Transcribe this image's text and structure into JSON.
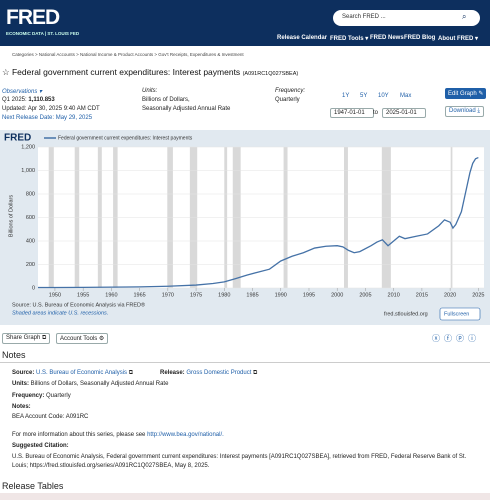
{
  "header": {
    "logo": "FRED",
    "tagline": "ECONOMIC DATA | ST. LOUIS FED",
    "search": "Search FRED ...",
    "nav": [
      "Release Calendar",
      "FRED Tools ▾",
      "FRED News",
      "FRED Blog",
      "About FRED ▾"
    ]
  },
  "breadcrumb": "Categories > National Accounts > National Income & Product Accounts > Gov't Receipts, Expenditures & Investment",
  "title": "Federal government current expenditures: Interest payments",
  "series_id": "(A091RC1Q027SBEA)",
  "info": {
    "observations": "Observations ▾",
    "latest_label": "Q1 2025:",
    "latest_value": "1,110.853",
    "updated": "Updated: Apr 30, 2025 9:40 AM CDT",
    "next_release": "Next Release Date: May 29, 2025",
    "units_label": "Units:",
    "units": "Billions of Dollars,",
    "units2": "Seasonally Adjusted Annual Rate",
    "frequency_label": "Frequency:",
    "frequency": "Quarterly"
  },
  "controls": {
    "ranges": [
      "1Y",
      "5Y",
      "10Y",
      "Max"
    ],
    "start": "1947-01-01",
    "to": "to",
    "end": "2025-01-01",
    "edit": "Edit Graph",
    "download": "Download"
  },
  "chart": {
    "type": "line",
    "logo": "FRED",
    "legend": "Federal government current expenditures: Interest payments",
    "ylabel": "Billions of Dollars",
    "color": "#4572a7",
    "x": [
      1947,
      1950,
      1955,
      1960,
      1965,
      1970,
      1975,
      1978,
      1980,
      1982,
      1984,
      1986,
      1988,
      1990,
      1992,
      1994,
      1996,
      1998,
      2000,
      2001,
      2002,
      2003,
      2004,
      2006,
      2007,
      2008,
      2009,
      2010,
      2011,
      2012,
      2014,
      2016,
      2018,
      2019,
      2020,
      2020.5,
      2021,
      2022,
      2023,
      2023.5,
      2024,
      2024.5,
      2025
    ],
    "values": [
      4,
      4.5,
      5.5,
      7.5,
      9.5,
      15,
      25,
      38,
      52,
      80,
      110,
      135,
      160,
      230,
      270,
      300,
      340,
      355,
      360,
      350,
      320,
      300,
      310,
      360,
      390,
      410,
      360,
      400,
      440,
      420,
      440,
      460,
      530,
      580,
      560,
      510,
      540,
      650,
      870,
      980,
      1060,
      1100,
      1110
    ],
    "xlim": [
      1947,
      2026
    ],
    "xticks": [
      1950,
      1955,
      1960,
      1965,
      1970,
      1975,
      1980,
      1985,
      1990,
      1995,
      2000,
      2005,
      2010,
      2015,
      2020,
      2025
    ],
    "ylim": [
      0,
      1200
    ],
    "yticks": [
      0,
      200,
      400,
      600,
      {
        "value": 800,
        "label": "800"
      },
      {
        "value": 1000,
        "label": "1,000"
      },
      {
        "value": 1200,
        "label": "1,200"
      }
    ],
    "recessions": [
      [
        1948.9,
        1949.8
      ],
      [
        1953.5,
        1954.3
      ],
      [
        1957.6,
        1958.3
      ],
      [
        1960.3,
        1961.1
      ],
      [
        1969.9,
        1970.9
      ],
      [
        1973.9,
        1975.2
      ],
      [
        1980.0,
        1980.5
      ],
      [
        1981.5,
        1982.9
      ],
      [
        1990.5,
        1991.2
      ],
      [
        2001.2,
        2001.9
      ],
      [
        2007.9,
        2009.5
      ],
      [
        2020.1,
        2020.4
      ]
    ],
    "recession_color": "#d9d9d9",
    "grid": true,
    "source": "Source: U.S. Bureau of Economic Analysis via FRED®",
    "shaded": "Shaded areas indicate U.S. recessions.",
    "site": "fred.stlouisfed.org",
    "fullscreen": "Fullscreen"
  },
  "share": {
    "share": "Share Graph",
    "account": "Account Tools"
  },
  "notes": {
    "heading": "Notes",
    "source_label": "Source:",
    "source": "U.S. Bureau of Economic Analysis",
    "release_label": "Release:",
    "release": "Gross Domestic Product",
    "units_label": "Units:",
    "units": "Billions of Dollars, Seasonally Adjusted Annual Rate",
    "frequency_label": "Frequency:",
    "frequency": "Quarterly",
    "notes_label": "Notes:",
    "code": "BEA Account Code: A091RC",
    "more": "For more information about this series, please see",
    "more_link": "http://www.bea.gov/national/.",
    "citation_label": "Suggested Citation:",
    "citation": "U.S. Bureau of Economic Analysis, Federal government current expenditures: Interest payments [A091RC1Q027SBEA], retrieved from FRED, Federal Reserve Bank of St. Louis; https://fred.stlouisfed.org/series/A091RC1Q027SBEA, May 8, 2025."
  },
  "release_tables": "Release Tables"
}
